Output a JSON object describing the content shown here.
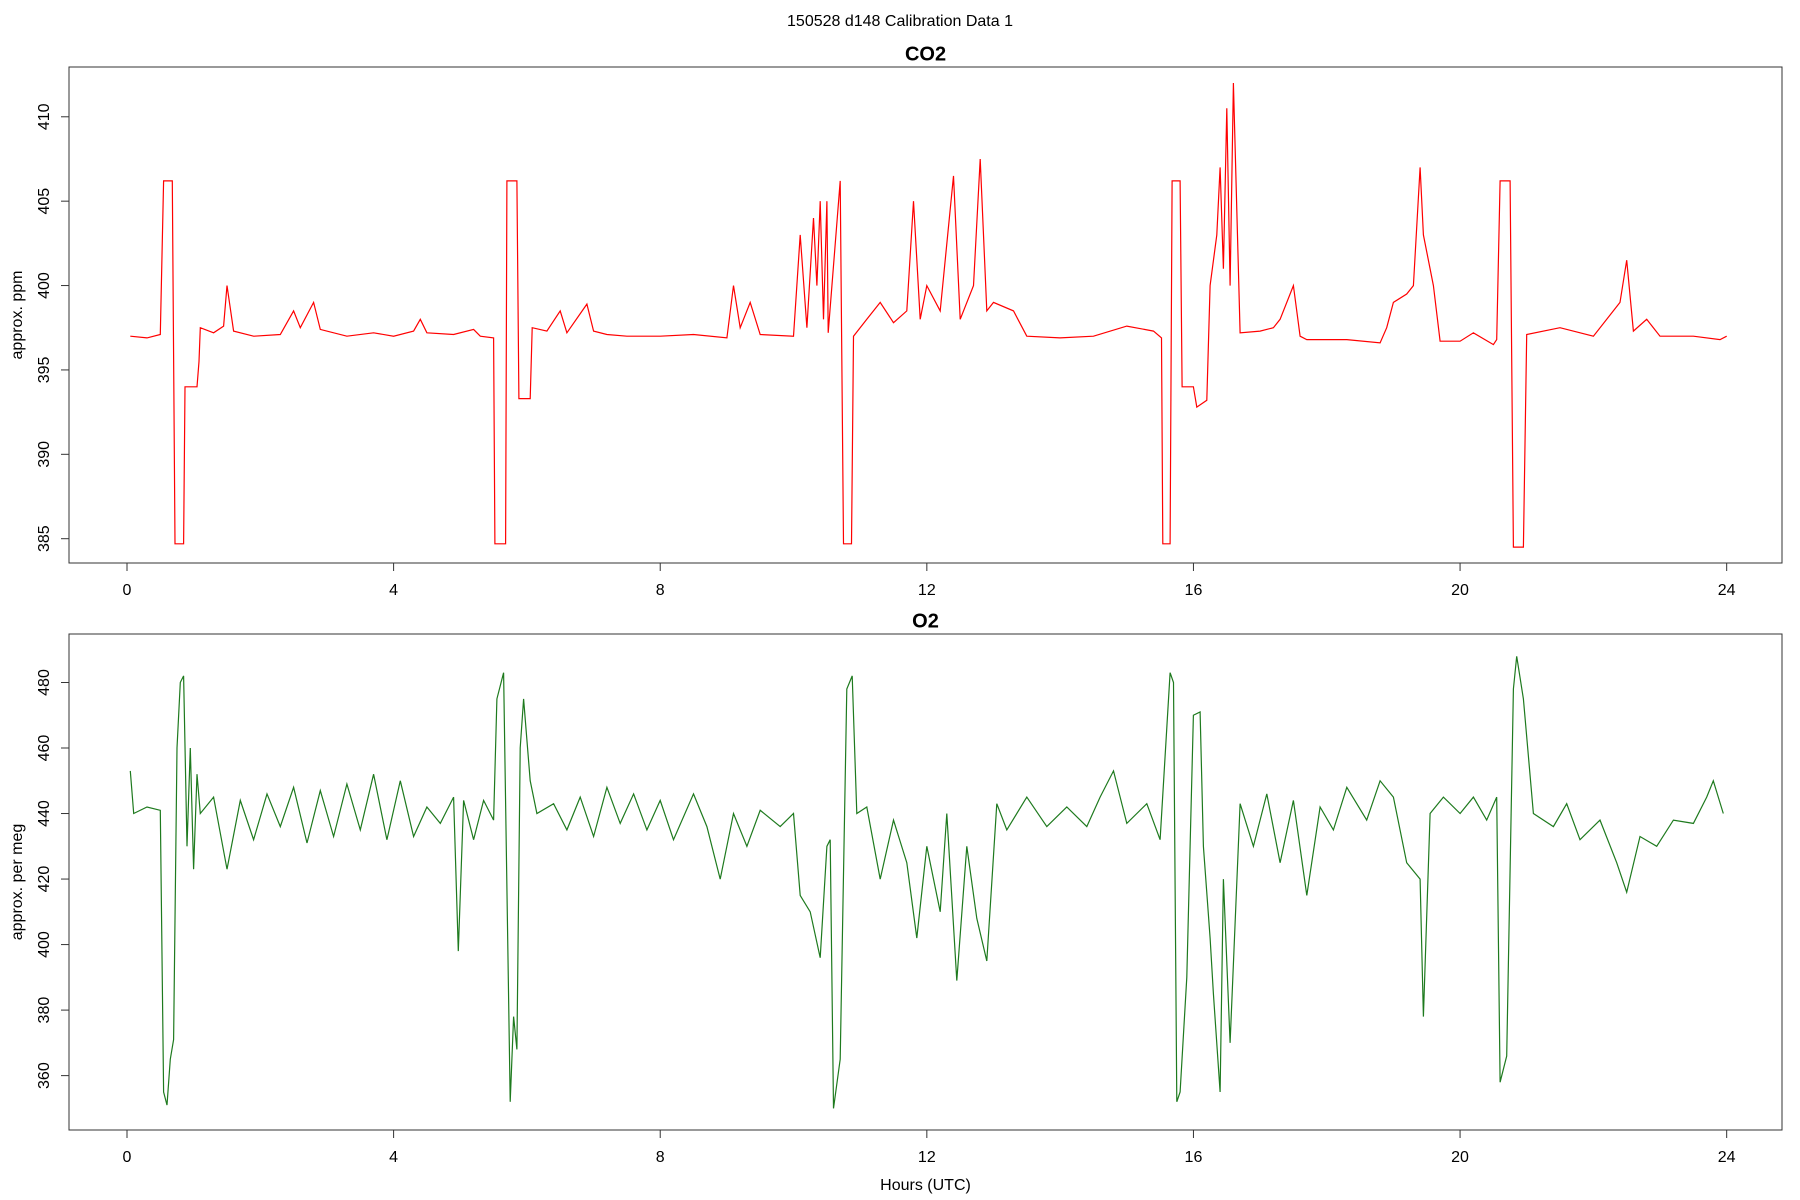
{
  "title": "150528   d148   Calibration Data 1",
  "chart_data": [
    {
      "type": "line",
      "title": "CO2",
      "ylabel": "approx. ppm",
      "color": "#ff0000",
      "xlim": [
        -0.87,
        24.83
      ],
      "xticks": [
        0,
        4,
        8,
        12,
        16,
        20,
        24
      ],
      "ylim": [
        383.56,
        412.95
      ],
      "yticks": [
        385,
        390,
        395,
        400,
        405,
        410
      ],
      "x": [
        0.05,
        0.3,
        0.5,
        0.55,
        0.68,
        0.72,
        0.85,
        0.87,
        1.05,
        1.08,
        1.1,
        1.3,
        1.45,
        1.5,
        1.6,
        1.9,
        2.3,
        2.5,
        2.6,
        2.8,
        2.9,
        3.3,
        3.7,
        4.0,
        4.3,
        4.4,
        4.5,
        4.9,
        5.2,
        5.3,
        5.5,
        5.52,
        5.68,
        5.7,
        5.85,
        5.88,
        6.05,
        6.08,
        6.3,
        6.5,
        6.6,
        6.9,
        7.0,
        7.2,
        7.5,
        8.0,
        8.5,
        9.0,
        9.1,
        9.2,
        9.35,
        9.5,
        10.0,
        10.1,
        10.2,
        10.3,
        10.35,
        10.4,
        10.45,
        10.5,
        10.52,
        10.7,
        10.75,
        10.87,
        10.9,
        11.1,
        11.3,
        11.5,
        11.7,
        11.8,
        11.9,
        12.0,
        12.2,
        12.4,
        12.5,
        12.7,
        12.8,
        12.9,
        13.0,
        13.3,
        13.5,
        14.0,
        14.5,
        15.0,
        15.4,
        15.52,
        15.54,
        15.65,
        15.68,
        15.8,
        15.83,
        16.0,
        16.05,
        16.2,
        16.25,
        16.35,
        16.4,
        16.45,
        16.5,
        16.55,
        16.6,
        16.7,
        17.0,
        17.2,
        17.3,
        17.5,
        17.6,
        17.7,
        18.3,
        18.8,
        18.9,
        19.0,
        19.2,
        19.3,
        19.4,
        19.45,
        19.6,
        19.7,
        20.0,
        20.2,
        20.5,
        20.55,
        20.6,
        20.75,
        20.8,
        20.95,
        21.0,
        21.5,
        22.0,
        22.4,
        22.5,
        22.6,
        22.8,
        23.0,
        23.5,
        23.9,
        24.0
      ],
      "values": [
        397.0,
        396.9,
        397.1,
        406.2,
        406.2,
        384.7,
        384.7,
        394.0,
        394.0,
        395.5,
        397.5,
        397.2,
        397.6,
        400.0,
        397.3,
        397.0,
        397.1,
        398.5,
        397.5,
        399.0,
        397.4,
        397.0,
        397.2,
        397.0,
        397.3,
        398.0,
        397.2,
        397.1,
        397.4,
        397.0,
        396.9,
        384.7,
        384.7,
        406.2,
        406.2,
        393.3,
        393.3,
        397.5,
        397.3,
        398.5,
        397.2,
        398.9,
        397.3,
        397.1,
        397.0,
        397.0,
        397.1,
        396.9,
        400.0,
        397.5,
        399.0,
        397.1,
        397.0,
        403.0,
        397.5,
        404.0,
        400.0,
        405.0,
        398.0,
        405.0,
        397.2,
        406.2,
        384.7,
        384.7,
        397.0,
        398.0,
        399.0,
        397.8,
        398.5,
        405.0,
        398.0,
        400.0,
        398.5,
        406.5,
        398.0,
        400.0,
        407.5,
        398.5,
        399.0,
        398.5,
        397.0,
        396.9,
        397.0,
        397.6,
        397.3,
        396.9,
        384.7,
        384.7,
        406.2,
        406.2,
        394.0,
        394.0,
        392.8,
        393.2,
        400.0,
        403.0,
        407.0,
        401.0,
        410.5,
        400.0,
        412.0,
        397.2,
        397.3,
        397.5,
        398.0,
        400.0,
        397.0,
        396.8,
        396.8,
        396.6,
        397.5,
        399.0,
        399.5,
        400.0,
        407.0,
        403.0,
        400.0,
        396.7,
        396.7,
        397.2,
        396.5,
        396.8,
        406.2,
        406.2,
        384.5,
        384.5,
        397.1,
        397.5,
        397.0,
        399.0,
        401.5,
        397.3,
        398.0,
        397.0,
        397.0,
        396.8,
        397.0
      ]
    },
    {
      "type": "line",
      "title": "O2",
      "ylabel": "approx. per meg",
      "xlabel": "Hours (UTC)",
      "color": "#1e7a1e",
      "xlim": [
        -0.87,
        24.83
      ],
      "xticks": [
        0,
        4,
        8,
        12,
        16,
        20,
        24
      ],
      "ylim": [
        343.4,
        494.8
      ],
      "yticks": [
        360,
        380,
        400,
        420,
        440,
        460,
        480
      ],
      "x": [
        0.05,
        0.1,
        0.3,
        0.5,
        0.55,
        0.6,
        0.65,
        0.7,
        0.75,
        0.8,
        0.85,
        0.9,
        0.95,
        1.0,
        1.05,
        1.1,
        1.3,
        1.5,
        1.7,
        1.9,
        2.1,
        2.3,
        2.5,
        2.7,
        2.9,
        3.1,
        3.3,
        3.5,
        3.7,
        3.9,
        4.1,
        4.3,
        4.5,
        4.7,
        4.9,
        4.97,
        5.05,
        5.2,
        5.35,
        5.5,
        5.55,
        5.65,
        5.75,
        5.8,
        5.85,
        5.9,
        5.95,
        6.05,
        6.15,
        6.4,
        6.6,
        6.8,
        7.0,
        7.2,
        7.4,
        7.6,
        7.8,
        8.0,
        8.2,
        8.5,
        8.7,
        8.9,
        9.1,
        9.3,
        9.5,
        9.8,
        10.0,
        10.1,
        10.25,
        10.4,
        10.5,
        10.55,
        10.6,
        10.7,
        10.8,
        10.88,
        10.95,
        11.1,
        11.3,
        11.5,
        11.7,
        11.85,
        12.0,
        12.2,
        12.3,
        12.45,
        12.6,
        12.75,
        12.9,
        13.05,
        13.2,
        13.5,
        13.8,
        14.1,
        14.4,
        14.6,
        14.8,
        15.0,
        15.3,
        15.5,
        15.65,
        15.7,
        15.75,
        15.8,
        15.9,
        16.0,
        16.1,
        16.15,
        16.25,
        16.3,
        16.4,
        16.45,
        16.55,
        16.7,
        16.9,
        17.1,
        17.3,
        17.5,
        17.7,
        17.9,
        18.1,
        18.3,
        18.6,
        18.8,
        19.0,
        19.2,
        19.4,
        19.45,
        19.55,
        19.75,
        20.0,
        20.2,
        20.4,
        20.55,
        20.6,
        20.7,
        20.8,
        20.85,
        20.95,
        21.1,
        21.4,
        21.6,
        21.8,
        22.1,
        22.35,
        22.5,
        22.7,
        22.95,
        23.2,
        23.5,
        23.7,
        23.8,
        23.95
      ],
      "values": [
        453,
        440,
        442,
        441,
        355,
        351,
        365,
        371,
        460,
        480,
        482,
        430,
        460,
        423,
        452,
        440,
        445,
        423,
        444,
        432,
        446,
        436,
        448,
        431,
        447,
        433,
        449,
        435,
        452,
        432,
        450,
        433,
        442,
        437,
        445,
        398,
        444,
        432,
        444,
        438,
        475,
        483,
        352,
        378,
        368,
        460,
        475,
        450,
        440,
        443,
        435,
        445,
        433,
        448,
        437,
        446,
        435,
        444,
        432,
        446,
        436,
        420,
        440,
        430,
        441,
        436,
        440,
        415,
        410,
        396,
        430,
        432,
        350,
        365,
        478,
        482,
        440,
        442,
        420,
        438,
        425,
        402,
        430,
        410,
        440,
        389,
        430,
        408,
        395,
        443,
        435,
        445,
        436,
        442,
        436,
        445,
        453,
        437,
        443,
        432,
        483,
        480,
        352,
        355,
        390,
        470,
        471,
        430,
        402,
        385,
        355,
        420,
        370,
        443,
        430,
        446,
        425,
        444,
        415,
        442,
        435,
        448,
        438,
        450,
        445,
        425,
        420,
        378,
        440,
        445,
        440,
        445,
        438,
        445,
        358,
        366,
        478,
        488,
        475,
        440,
        436,
        443,
        432,
        438,
        425,
        416,
        433,
        430,
        438,
        437,
        445,
        450,
        440
      ]
    }
  ]
}
